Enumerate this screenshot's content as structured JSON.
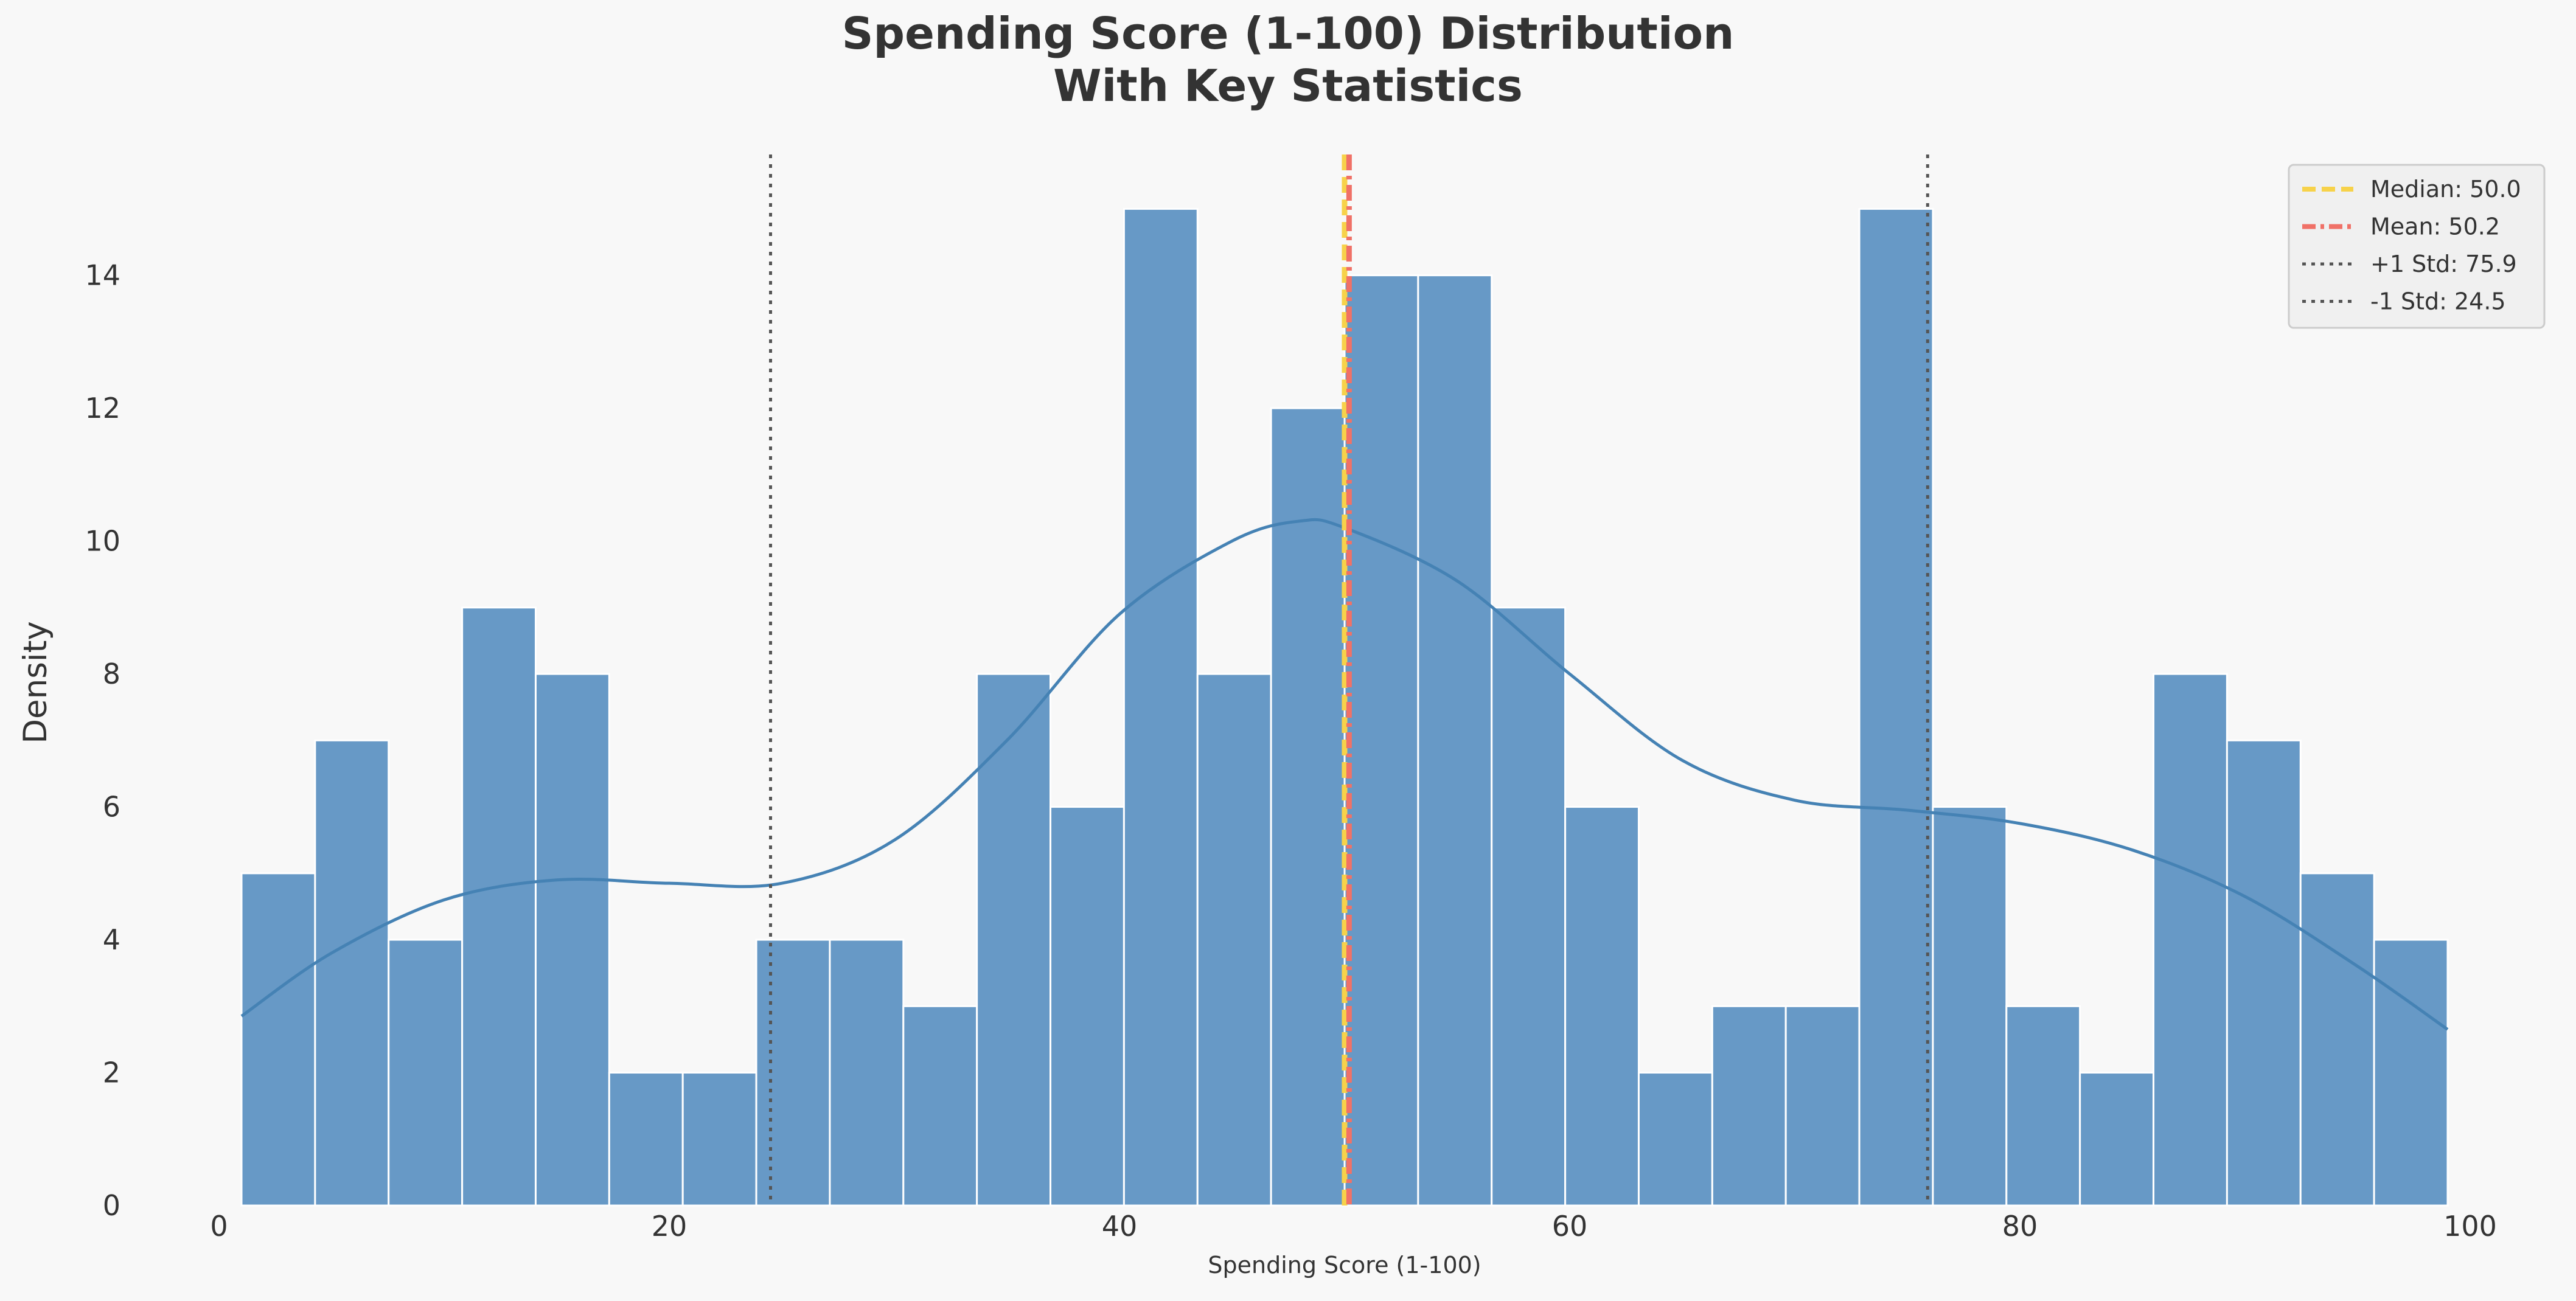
{
  "chart_data": {
    "type": "bar",
    "title": "Spending Score (1-100) Distribution\nWith Key Statistics",
    "xlabel": "Spending Score (1-100)",
    "ylabel": "Density",
    "xlim": [
      0,
      100
    ],
    "ylim": [
      0,
      15.8
    ],
    "x_ticks": [
      0,
      20,
      40,
      60,
      80,
      100
    ],
    "y_ticks": [
      0,
      2,
      4,
      6,
      8,
      10,
      12,
      14
    ],
    "grid": false,
    "legend_position": "top-right",
    "bins": {
      "start": 1,
      "end": 99,
      "values": [
        5,
        7,
        4,
        9,
        8,
        2,
        2,
        4,
        4,
        3,
        8,
        6,
        15,
        8,
        12,
        14,
        14,
        9,
        6,
        2,
        3,
        3,
        15,
        6,
        3,
        2,
        8,
        7,
        5,
        4
      ]
    },
    "kde": {
      "x": [
        1,
        5,
        10,
        15,
        20,
        25,
        30,
        35,
        40,
        45,
        48,
        50,
        55,
        60,
        65,
        70,
        75,
        80,
        85,
        90,
        95,
        99
      ],
      "y": [
        2.85,
        3.8,
        4.6,
        4.9,
        4.85,
        4.85,
        5.5,
        7.0,
        8.9,
        10.0,
        10.3,
        10.2,
        9.4,
        8.0,
        6.7,
        6.1,
        5.95,
        5.75,
        5.35,
        4.65,
        3.6,
        2.65
      ]
    },
    "reference_lines": [
      {
        "label": "Median: 50.0",
        "value": 50.0,
        "style": "dashed",
        "color": "#f7d24a"
      },
      {
        "label": "Mean: 50.2",
        "value": 50.2,
        "style": "dashdot",
        "color": "#f07167"
      },
      {
        "label": "+1 Std: 75.9",
        "value": 75.9,
        "style": "dotted",
        "color": "#555555"
      },
      {
        "label": "-1 Std: 24.5",
        "value": 24.5,
        "style": "dotted",
        "color": "#555555"
      }
    ],
    "colors": {
      "bar": "#6799c6",
      "kde": "#4582b4",
      "background": "#f8f8f8",
      "text": "#333333"
    }
  }
}
